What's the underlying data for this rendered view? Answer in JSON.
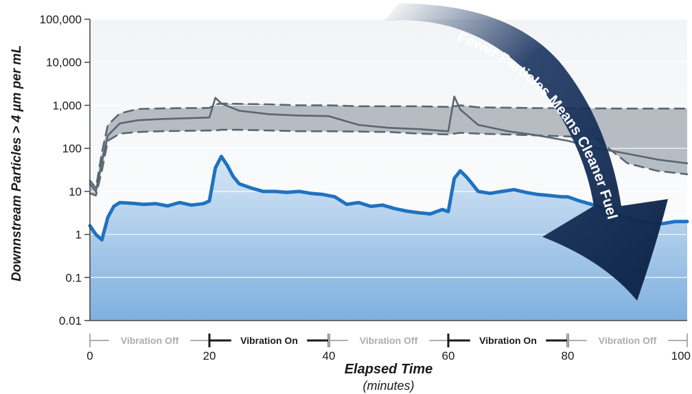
{
  "chart_data": {
    "type": "line",
    "xlabel": "Elapsed Time",
    "xlabel_sub": "(minutes)",
    "ylabel": "Downnstream Particles > 4 µm per mL",
    "x_scale": "linear",
    "y_scale": "log",
    "xlim": [
      0,
      100
    ],
    "ylim": [
      0.01,
      100000
    ],
    "x_ticks": [
      "0",
      "20",
      "40",
      "60",
      "80",
      "100"
    ],
    "y_ticks": [
      "100,000",
      "10,000",
      "1,000",
      "100",
      "10",
      "1",
      "0.1",
      "0.01"
    ],
    "grid": "horizontal",
    "phases": [
      {
        "label": "Vibration Off",
        "start": 0,
        "end": 20,
        "state": "off"
      },
      {
        "label": "Vibration On",
        "start": 20,
        "end": 40,
        "state": "on"
      },
      {
        "label": "Vibration Off",
        "start": 40,
        "end": 60,
        "state": "off"
      },
      {
        "label": "Vibration On",
        "start": 60,
        "end": 80,
        "state": "on"
      },
      {
        "label": "Vibration Off",
        "start": 80,
        "end": 100,
        "state": "off"
      }
    ],
    "annotation": "Fewer Particles Means Cleaner Fuel",
    "series": [
      {
        "role": "competitor-upper",
        "style": "dashed",
        "color": "#5a6670",
        "x": [
          0,
          1,
          2,
          3,
          5,
          8,
          12,
          16,
          20,
          21,
          22,
          25,
          30,
          35,
          40,
          45,
          50,
          55,
          60,
          61,
          62,
          65,
          70,
          75,
          80,
          85,
          90,
          95,
          100
        ],
        "y": [
          18,
          12,
          80,
          350,
          650,
          820,
          850,
          860,
          870,
          1050,
          1100,
          1080,
          1050,
          1000,
          1000,
          950,
          950,
          950,
          920,
          950,
          1000,
          900,
          880,
          860,
          860,
          850,
          840,
          840,
          840
        ]
      },
      {
        "role": "competitor-mid",
        "style": "solid",
        "color": "#5a6670",
        "x": [
          0,
          1,
          2,
          3,
          5,
          8,
          12,
          16,
          20,
          21,
          22,
          25,
          30,
          35,
          40,
          45,
          50,
          55,
          60,
          61,
          62,
          65,
          70,
          75,
          80,
          85,
          90,
          95,
          100
        ],
        "y": [
          15,
          10,
          50,
          200,
          380,
          450,
          480,
          500,
          520,
          1500,
          1100,
          750,
          620,
          580,
          560,
          350,
          300,
          280,
          250,
          1600,
          800,
          350,
          250,
          200,
          150,
          100,
          75,
          55,
          45
        ]
      },
      {
        "role": "competitor-lower",
        "style": "dashed",
        "color": "#5a6670",
        "x": [
          0,
          1,
          2,
          3,
          5,
          8,
          12,
          16,
          20,
          21,
          22,
          25,
          30,
          35,
          40,
          45,
          50,
          55,
          60,
          61,
          62,
          65,
          70,
          75,
          80,
          85,
          90,
          95,
          100
        ],
        "y": [
          9,
          8,
          30,
          150,
          220,
          240,
          250,
          255,
          260,
          260,
          270,
          270,
          260,
          250,
          250,
          245,
          240,
          220,
          210,
          220,
          230,
          220,
          210,
          200,
          190,
          160,
          45,
          30,
          25
        ]
      },
      {
        "role": "featured-filter",
        "style": "solid",
        "color": "#1f72c0",
        "x": [
          0,
          1,
          2,
          3,
          4,
          5,
          7,
          9,
          11,
          13,
          15,
          17,
          19,
          20,
          21,
          22,
          23,
          24,
          25,
          27,
          29,
          31,
          33,
          35,
          37,
          39,
          41,
          43,
          45,
          47,
          49,
          51,
          53,
          55,
          57,
          59,
          60,
          61,
          62,
          63,
          64,
          65,
          67,
          69,
          71,
          73,
          75,
          77,
          79,
          80,
          82,
          84,
          86,
          88,
          90,
          92,
          94,
          96,
          98,
          100
        ],
        "y": [
          1.6,
          1.0,
          0.75,
          2.5,
          4.5,
          5.5,
          5.3,
          5.0,
          5.2,
          4.6,
          5.5,
          4.8,
          5.2,
          6.0,
          35,
          65,
          40,
          22,
          15,
          12,
          10,
          10,
          9.5,
          10,
          9.0,
          8.5,
          7.5,
          5.0,
          5.5,
          4.5,
          4.8,
          4.0,
          3.5,
          3.2,
          3.0,
          3.8,
          3.4,
          20,
          30,
          22,
          15,
          10,
          9.0,
          10,
          11,
          9.5,
          8.5,
          8.0,
          7.5,
          7.5,
          6.0,
          5.0,
          4.0,
          3.0,
          2.5,
          2.0,
          1.8,
          1.8,
          2.0,
          2.0
        ]
      }
    ]
  }
}
